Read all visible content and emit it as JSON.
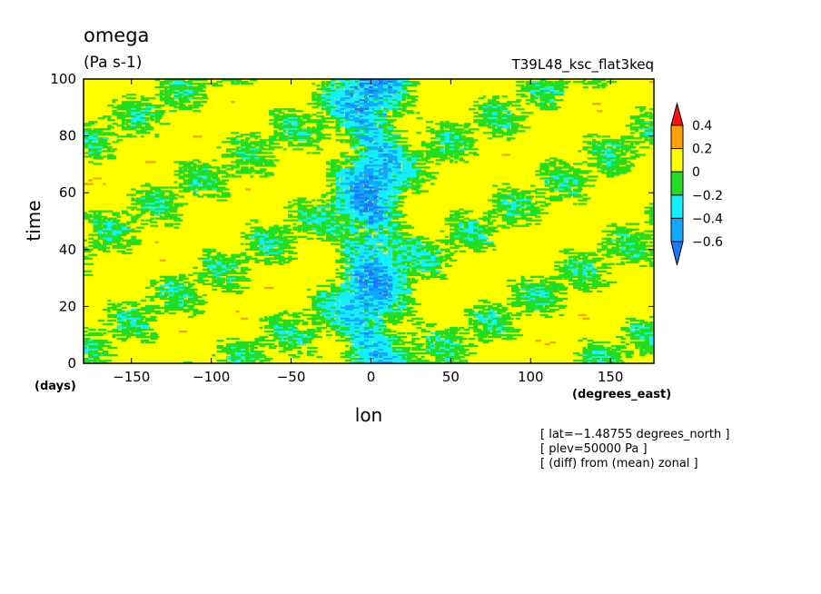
{
  "chart_data": {
    "type": "heatmap",
    "title": "omega",
    "units": "(Pa s-1)",
    "run_label": "T39L48_ksc_flat3keq",
    "xlabel": "lon",
    "ylabel": "time",
    "x_units": "(degrees_east)",
    "y_units": "(days)",
    "xlim": [
      -180,
      177.2
    ],
    "ylim": [
      0,
      100
    ],
    "x_ticks": [
      {
        "value": -150,
        "label": "−150"
      },
      {
        "value": -100,
        "label": "−100"
      },
      {
        "value": -50,
        "label": "−50"
      },
      {
        "value": 0,
        "label": "0"
      },
      {
        "value": 50,
        "label": "50"
      },
      {
        "value": 100,
        "label": "100"
      },
      {
        "value": 150,
        "label": "150"
      }
    ],
    "y_ticks": [
      {
        "value": 0,
        "label": "0"
      },
      {
        "value": 20,
        "label": "20"
      },
      {
        "value": 40,
        "label": "40"
      },
      {
        "value": 60,
        "label": "60"
      },
      {
        "value": 80,
        "label": "80"
      },
      {
        "value": 100,
        "label": "100"
      }
    ],
    "colorbar": {
      "levels": [
        -0.6,
        -0.4,
        -0.2,
        0,
        0.2,
        0.4
      ],
      "labels": [
        "−0.6",
        "−0.4",
        "−0.2",
        "0",
        "0.2",
        "0.4"
      ],
      "colors": [
        "#1a78ff",
        "#13a8ff",
        "#12f0ff",
        "#22dd22",
        "#ffff00",
        "#ffa000",
        "#ff1010"
      ]
    },
    "field_description": "Hovmoller of omega anomaly: mostly 0 to 0.2 (yellow) with eastward-tilted streaks of -0.2 to 0 (green) and negative values down to about -0.6 concentrated near lon 0",
    "annotations": [
      "[ lat=−1.48755 degrees_north ]",
      "[ plev=50000 Pa ]",
      "[ (diff) from (mean) zonal ]"
    ]
  }
}
